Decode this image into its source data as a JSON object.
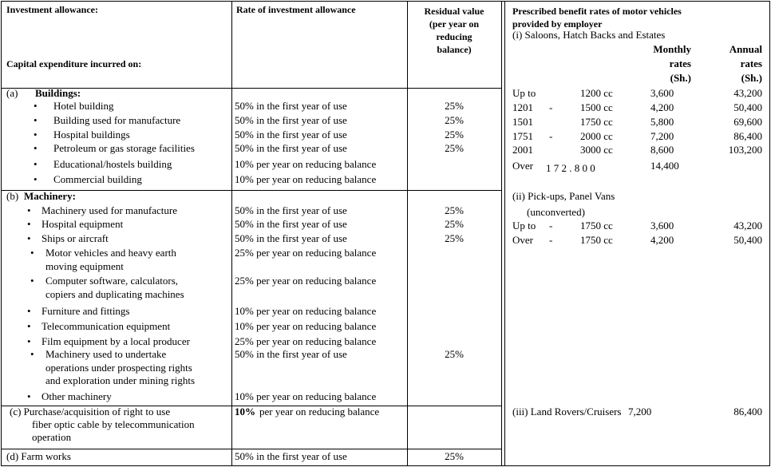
{
  "left": {
    "header": {
      "col1": "Investment allowance:",
      "col1_sub": "Capital expenditure incurred on:",
      "col2": "Rate of investment allowance",
      "col3": [
        "Residual value",
        "(per year on",
        "reducing",
        "balance)"
      ]
    },
    "sections": [
      {
        "label": "(a)",
        "title": "Buildings:",
        "items": [
          {
            "text": [
              "Hotel building"
            ],
            "rate": "50% in the first year of use",
            "residual": "25%"
          },
          {
            "text": [
              "Building used for manufacture"
            ],
            "rate": "50% in the first year of use",
            "residual": "25%"
          },
          {
            "text": [
              "Hospital buildings"
            ],
            "rate": "50% in the first year of use",
            "residual": "25%"
          },
          {
            "text": [
              "Petroleum or gas storage facilities"
            ],
            "rate": "50% in the first year of use",
            "residual": "25%"
          },
          {
            "text": [
              "Educational/hostels building"
            ],
            "rate": "10% per year on reducing balance"
          },
          {
            "text": [
              "Commercial building"
            ],
            "rate": "10% per year on reducing balance"
          }
        ]
      },
      {
        "label": "(b)",
        "title": "Machinery:",
        "items": [
          {
            "text": [
              "Machinery used for manufacture"
            ],
            "rate": "50% in the first year of use",
            "residual": "25%"
          },
          {
            "text": [
              "Hospital equipment"
            ],
            "rate": "50% in the first year of use",
            "residual": "25%"
          },
          {
            "text": [
              "Ships or aircraft"
            ],
            "rate": "50% in the first year of use",
            "residual": "25%"
          },
          {
            "text": [
              "Motor vehicles and heavy earth",
              "moving equipment"
            ],
            "rate": "25% per year on reducing balance"
          },
          {
            "text": [
              "Computer software, calculators,",
              "copiers and duplicating machines"
            ],
            "rate": "25% per year on reducing balance"
          },
          {
            "text": [
              "Furniture and fittings"
            ],
            "rate": "10% per year on reducing balance"
          },
          {
            "text": [
              "Telecommunication equipment"
            ],
            "rate": "10% per year on reducing balance"
          },
          {
            "text": [
              "Film equipment by a local producer"
            ],
            "rate": "25% per year on reducing balance"
          },
          {
            "text": [
              "Machinery used to undertake",
              "operations under prospecting rights",
              "and exploration under mining rights"
            ],
            "rate": "50% in the first year of use",
            "residual": "25%"
          },
          {
            "text": [
              "Other machinery"
            ],
            "rate": "10% per year on reducing balance"
          }
        ]
      },
      {
        "text": [
          "(c) Purchase/acquisition of right to use",
          "fiber optic cable by telecommunication",
          "operation"
        ],
        "rate_bold": "10%",
        "rate": "per year on reducing balance"
      },
      {
        "text": [
          "(d) Farm works"
        ],
        "rate": "50% in the first year of use",
        "residual": "25%"
      }
    ]
  },
  "right": {
    "title": [
      "Prescribed benefit rates of motor vehicles",
      "provided by employer"
    ],
    "monthly_header": [
      "Monthly",
      "rates",
      "(Sh.)"
    ],
    "annual_header": [
      "Annual",
      "rates",
      "(Sh.)"
    ],
    "groups": [
      {
        "title": "(i) Saloons, Hatch Backs and Estates",
        "rows": [
          {
            "from": "Up to",
            "to": "1200 cc",
            "monthly": "3,600",
            "annual": "43,200"
          },
          {
            "from": "1201",
            "sep": "-",
            "to": "1500 cc",
            "monthly": "4,200",
            "annual": "50,400"
          },
          {
            "from": "1501",
            "to": "1750 cc",
            "monthly": "5,800",
            "annual": "69,600"
          },
          {
            "from": "1751",
            "sep": "-",
            "to": "2000 cc",
            "monthly": "7,200",
            "annual": "86,400"
          },
          {
            "from": "2001",
            "to": "3000 cc",
            "monthly": "8,600",
            "annual": "103,200"
          },
          {
            "from": "Over",
            "to": "1 7 2 . 8 0 0",
            "monthly": "14,400"
          }
        ]
      },
      {
        "title": [
          "(ii) Pick-ups, Panel Vans",
          "(unconverted)"
        ],
        "rows": [
          {
            "from": "Up to",
            "sep": "-",
            "to": "1750 cc",
            "monthly": "3,600",
            "annual": "43,200"
          },
          {
            "from": "Over",
            "sep": "-",
            "to": "1750 cc",
            "monthly": "4,200",
            "annual": "50,400"
          }
        ]
      },
      {
        "title": "(iii) Land Rovers/Cruisers",
        "rows": [
          {
            "monthly": "7,200",
            "annual": "86,400"
          }
        ]
      }
    ]
  }
}
